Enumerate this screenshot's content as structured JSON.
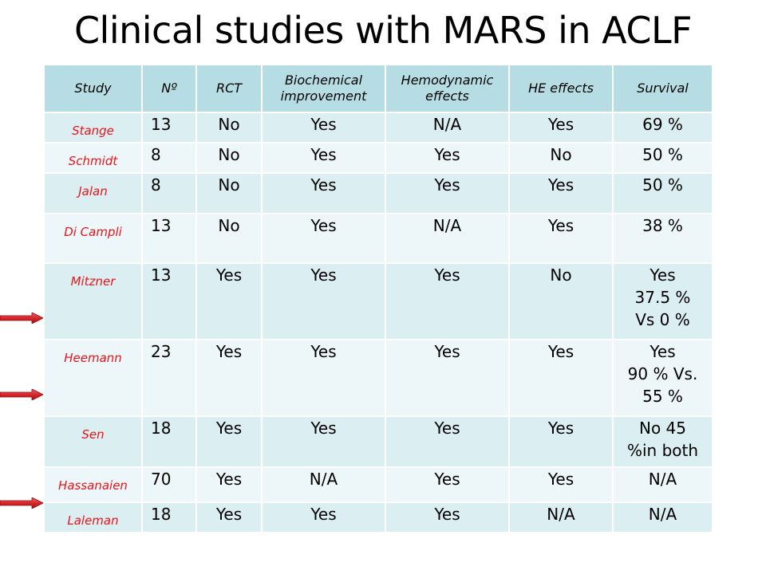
{
  "title": "Clinical studies with MARS in ACLF",
  "columns": [
    "Study",
    "Nº",
    "RCT",
    "Biochemical improvement",
    "Hemodynamic effects",
    "HE effects",
    "Survival"
  ],
  "rows": [
    {
      "study": "Stange",
      "n": "13",
      "rct": "No",
      "biochem": "Yes",
      "hemo": "N/A",
      "he": "Yes",
      "survival": [
        "69 %"
      ]
    },
    {
      "study": "Schmidt",
      "n": "8",
      "rct": "No",
      "biochem": "Yes",
      "hemo": "Yes",
      "he": "No",
      "survival": [
        "50 %"
      ]
    },
    {
      "study": "Jalan",
      "n": "8",
      "rct": "No",
      "biochem": "Yes",
      "hemo": "Yes",
      "he": "Yes",
      "survival": [
        "50 %"
      ]
    },
    {
      "study": "Di Campli",
      "n": "13",
      "rct": "No",
      "biochem": "Yes",
      "hemo": "N/A",
      "he": "Yes",
      "survival": [
        "38 %"
      ]
    },
    {
      "study": "Mitzner",
      "n": "13",
      "rct": "Yes",
      "biochem": "Yes",
      "hemo": "Yes",
      "he": "No",
      "survival": [
        "Yes",
        "37.5 %",
        "Vs 0 %"
      ]
    },
    {
      "study": "Heemann",
      "n": "23",
      "rct": "Yes",
      "biochem": "Yes",
      "hemo": "Yes",
      "he": "Yes",
      "survival": [
        "Yes",
        "90 % Vs.",
        "55 %"
      ]
    },
    {
      "study": "Sen",
      "n": "18",
      "rct": "Yes",
      "biochem": "Yes",
      "hemo": "Yes",
      "he": "Yes",
      "survival": [
        "No 45",
        "%in both"
      ]
    },
    {
      "study": "Hassanaien",
      "n": "70",
      "rct": "Yes",
      "biochem": "N/A",
      "hemo": "Yes",
      "he": "Yes",
      "survival": [
        "N/A"
      ]
    },
    {
      "study": "Laleman",
      "n": "18",
      "rct": "Yes",
      "biochem": "Yes",
      "hemo": "Yes",
      "he": "N/A",
      "survival": [
        "N/A"
      ]
    }
  ],
  "colors": {
    "header_bg": "#b6dde4",
    "row_odd": "#dbeef1",
    "row_even": "#edf6f8",
    "study_text": "#e8141a",
    "arrow": "#d7262b"
  },
  "arrows": [
    {
      "icon": "red-arrow-icon",
      "row": "Mitzner"
    },
    {
      "icon": "red-arrow-icon",
      "row": "Heemann"
    },
    {
      "icon": "red-arrow-icon",
      "row": "Hassanaien"
    }
  ]
}
